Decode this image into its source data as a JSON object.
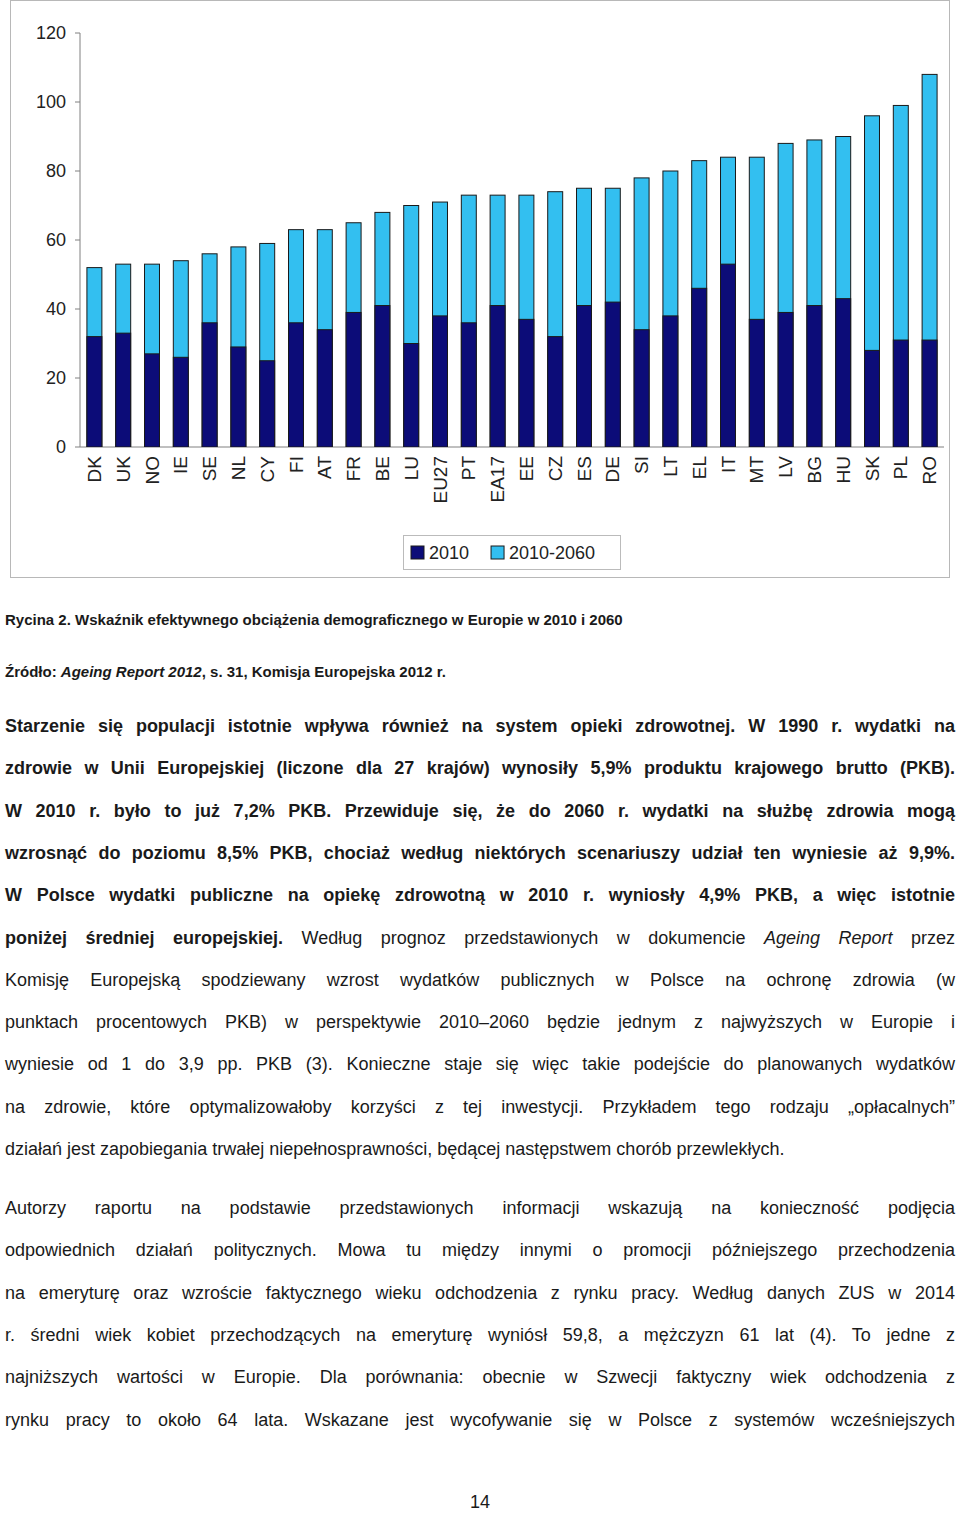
{
  "chart_data": {
    "type": "bar",
    "categories": [
      "DK",
      "UK",
      "NO",
      "IE",
      "SE",
      "NL",
      "CY",
      "FI",
      "AT",
      "FR",
      "BE",
      "LU",
      "EU27",
      "PT",
      "EA17",
      "EE",
      "CZ",
      "ES",
      "DE",
      "SI",
      "LT",
      "EL",
      "IT",
      "MT",
      "LV",
      "BG",
      "HU",
      "SK",
      "PL",
      "RO"
    ],
    "series": [
      {
        "name": "2010",
        "color": "#0c0c78",
        "values": [
          32,
          33,
          27,
          26,
          36,
          29,
          25,
          36,
          34,
          39,
          41,
          30,
          38,
          36,
          41,
          37,
          32,
          41,
          42,
          34,
          38,
          46,
          53,
          37,
          39,
          41,
          43,
          28,
          31,
          31
        ]
      },
      {
        "name": "2010-2060",
        "color": "#33bff0",
        "values": [
          52,
          53,
          53,
          54,
          56,
          58,
          59,
          63,
          63,
          65,
          68,
          70,
          71,
          73,
          73,
          73,
          74,
          75,
          75,
          78,
          80,
          83,
          84,
          84,
          88,
          89,
          90,
          96,
          99,
          108
        ]
      }
    ],
    "ylim": [
      0,
      120
    ],
    "yticks": [
      0,
      20,
      40,
      60,
      80,
      100,
      120
    ],
    "grid": false,
    "legend": "bottom"
  },
  "caption": [
    {
      "text": "Rycina 2. Wskaźnik efektywnego obciążenia demograficznego w Europie w 2010 i 2060",
      "style": "bold"
    }
  ],
  "source": [
    {
      "text": "Źródło: ",
      "style": "bold"
    },
    {
      "text": "Ageing Report 2012",
      "style": "bold-italic"
    },
    {
      "text": ", s. 31, Komisja Europejska 2012 r.",
      "style": "bold"
    }
  ],
  "paragraphs": [
    [
      [
        {
          "text": "Starzenie się populacji istotnie wpływa również na system opieki zdrowotnej. W 1990 r. wydatki na",
          "style": "bold"
        }
      ],
      [
        {
          "text": "zdrowie w Unii Europejskiej (liczone dla 27 krajów) wynosiły 5,9% produktu krajowego brutto (PKB).",
          "style": "bold"
        }
      ],
      [
        {
          "text": "W 2010 r. było to już 7,2% PKB. Przewiduje się, że do 2060 r. wydatki na służbę zdrowia mogą",
          "style": "bold"
        }
      ],
      [
        {
          "text": "wzrosnąć do poziomu 8,5% PKB, chociaż według niektórych scenariuszy udział ten wyniesie aż 9,9%.",
          "style": "bold"
        }
      ],
      [
        {
          "text": "W Polsce wydatki publiczne na opiekę zdrowotną w 2010 r. wyniosły 4,9% PKB, a więc istotnie",
          "style": "bold"
        }
      ],
      [
        {
          "text": "poniżej średniej europejskiej.",
          "style": "bold"
        },
        {
          "text": " Według prognoz przedstawionych w dokumencie ",
          "style": "normal"
        },
        {
          "text": "Ageing Report",
          "style": "italic"
        },
        {
          "text": " przez",
          "style": "normal"
        }
      ],
      [
        {
          "text": "Komisję Europejską spodziewany wzrost wydatków publicznych w Polsce na ochronę zdrowia (w",
          "style": "normal"
        }
      ],
      [
        {
          "text": "punktach procentowych PKB) w perspektywie 2010–2060 będzie jednym z najwyższych w Europie i",
          "style": "normal"
        }
      ],
      [
        {
          "text": "wyniesie od 1 do 3,9 pp. PKB (3). Konieczne staje się więc takie podejście do planowanych wydatków",
          "style": "normal"
        }
      ],
      [
        {
          "text": "na zdrowie, które optymalizowałoby korzyści z tej inwestycji. Przykładem tego rodzaju „opłacalnych”",
          "style": "normal"
        }
      ],
      [
        {
          "text": "działań jest zapobiegania trwałej niepełnosprawności, będącej następstwem chorób przewlekłych.",
          "style": "normal"
        }
      ]
    ],
    [
      [
        {
          "text": "Autorzy raportu na podstawie przedstawionych informacji wskazują na konieczność podjęcia",
          "style": "normal"
        }
      ],
      [
        {
          "text": "odpowiednich działań politycznych. Mowa tu między innymi o promocji późniejszego przechodzenia",
          "style": "normal"
        }
      ],
      [
        {
          "text": "na emeryturę oraz wzroście faktycznego wieku odchodzenia z rynku pracy. Według danych ZUS w 2014",
          "style": "normal"
        }
      ],
      [
        {
          "text": "r. średni wiek kobiet przechodzących na emeryturę wyniósł 59,8, a mężczyzn 61 lat (4). To jedne z",
          "style": "normal"
        }
      ],
      [
        {
          "text": "najniższych wartości w Europie. Dla porównania: obecnie w Szwecji faktyczny wiek odchodzenia z",
          "style": "normal"
        }
      ],
      [
        {
          "text": "rynku pracy to około 64 lata. Wskazane jest wycofywanie się w Polsce z systemów wcześniejszych",
          "style": "normal"
        }
      ]
    ]
  ],
  "page_number": "14"
}
